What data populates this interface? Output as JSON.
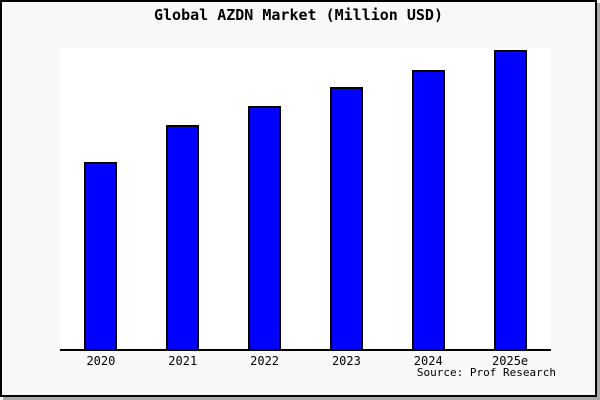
{
  "chart_data": {
    "type": "bar",
    "title": "Global AZDN Market (Million USD)",
    "categories": [
      "2020",
      "2021",
      "2022",
      "2023",
      "2024",
      "2025e"
    ],
    "values_relative_pct": [
      62.5,
      74.9,
      81.3,
      87.5,
      93.4,
      100
    ],
    "values_note": "No y-axis scale or data labels are shown; values are relative bar heights as a percentage of the tallest bar (2025e).",
    "xlabel": "",
    "ylabel": "",
    "legend": "none",
    "grid": false,
    "axis_lines": "bottom only",
    "source_note": "Source: Prof Research",
    "colors": {
      "bar_fill": "#0000ff",
      "bar_border": "#000000",
      "plot_background": "#ffffff",
      "canvas_background": "#f8f8f8",
      "frame_border": "#000000",
      "shadow": "#aaaaaa",
      "text": "#000000"
    }
  }
}
